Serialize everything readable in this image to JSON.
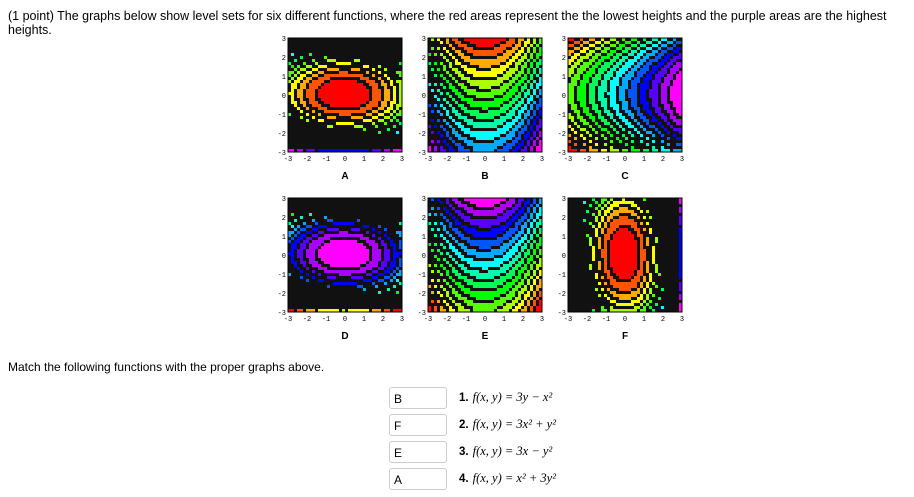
{
  "question": "(1 point) The graphs below show level sets for six different functions, where the red areas represent the the lowest heights and the purple areas are the highest heights.",
  "tick_labels": [
    "-3",
    "-2",
    "-1",
    "0",
    "1",
    "2",
    "3"
  ],
  "plots": [
    {
      "label": "A"
    },
    {
      "label": "B"
    },
    {
      "label": "C"
    },
    {
      "label": "D"
    },
    {
      "label": "E"
    },
    {
      "label": "F"
    }
  ],
  "instruction": "Match the following functions with the proper graphs above.",
  "answers": [
    {
      "answer": "B",
      "number": "1.",
      "formula": "f(x, y) = 3y − x²"
    },
    {
      "answer": "F",
      "number": "2.",
      "formula": "f(x, y) = 3x² + y²"
    },
    {
      "answer": "E",
      "number": "3.",
      "formula": "f(x, y) = 3x − y²"
    },
    {
      "answer": "A",
      "number": "4.",
      "formula": "f(x, y) = x² + 3y²"
    }
  ]
}
